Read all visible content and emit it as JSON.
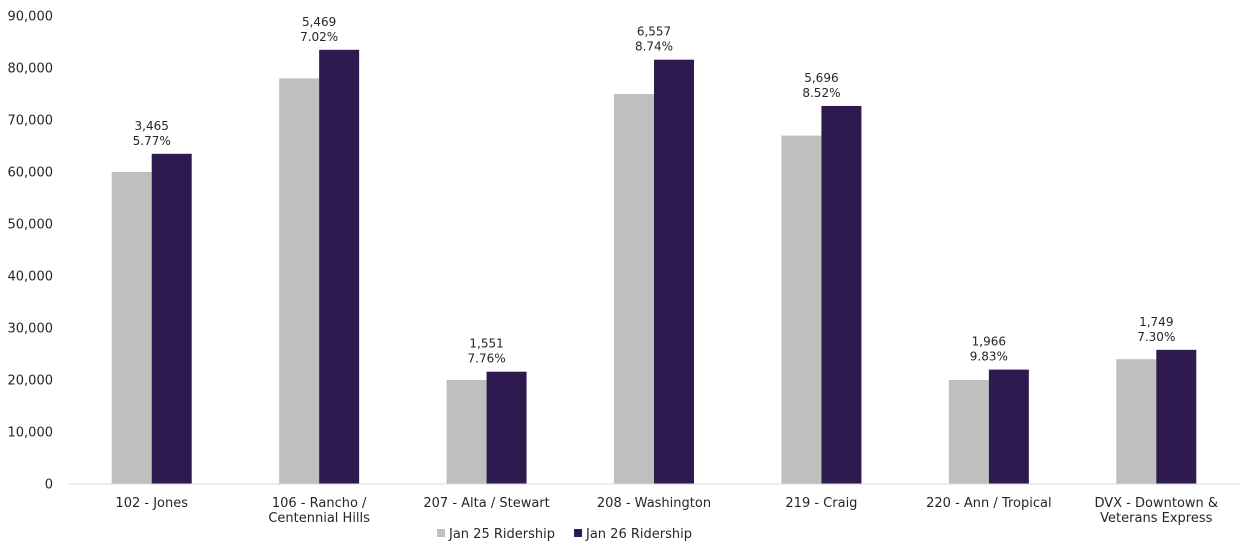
{
  "chart_data": {
    "type": "bar",
    "title": "",
    "xlabel": "",
    "ylabel": "",
    "ylim": [
      0,
      90000
    ],
    "y_ticks": [
      "0",
      "10,000",
      "20,000",
      "30,000",
      "40,000",
      "50,000",
      "60,000",
      "70,000",
      "80,000",
      "90,000"
    ],
    "grid": false,
    "legend_position": "bottom",
    "categories": [
      [
        "102 - Jones"
      ],
      [
        "106 - Rancho /",
        "Centennial Hills"
      ],
      [
        "207 - Alta / Stewart"
      ],
      [
        "208 - Washington"
      ],
      [
        "219 - Craig"
      ],
      [
        "220 - Ann / Tropical"
      ],
      [
        "DVX - Downtown &",
        "Veterans Express"
      ]
    ],
    "series": [
      {
        "name": "Jan 25 Ridership",
        "color": "#bfbfbf",
        "values": [
          60000,
          78000,
          20000,
          75000,
          67000,
          20000,
          24000
        ]
      },
      {
        "name": "Jan 26 Ridership",
        "color": "#2e1a4f",
        "values": [
          63500,
          83500,
          21600,
          81600,
          72700,
          22000,
          25800
        ]
      }
    ],
    "annotations": [
      {
        "change": "3,465",
        "pct": "5.77%"
      },
      {
        "change": "5,469",
        "pct": "7.02%"
      },
      {
        "change": "1,551",
        "pct": "7.76%"
      },
      {
        "change": "6,557",
        "pct": "8.74%"
      },
      {
        "change": "5,696",
        "pct": "8.52%"
      },
      {
        "change": "1,966",
        "pct": "9.83%"
      },
      {
        "change": "1,749",
        "pct": "7.30%"
      }
    ]
  }
}
